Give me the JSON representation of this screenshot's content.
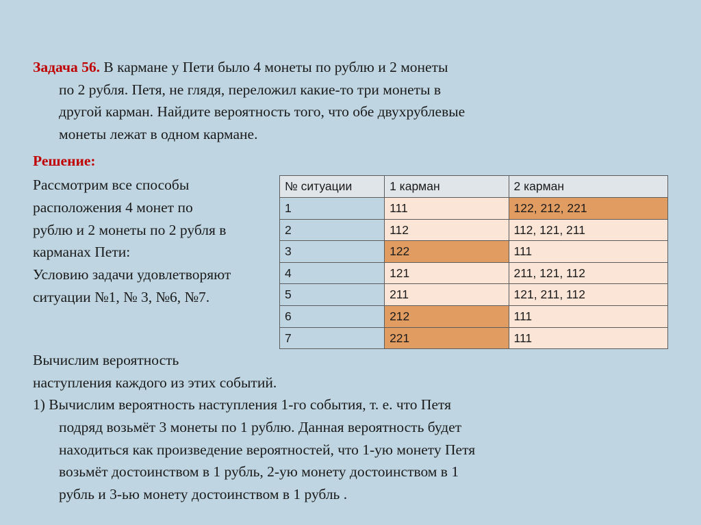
{
  "problem": {
    "title": "Задача 56.",
    "line1": "   В кармане у Пети было 4 монеты по рублю и 2 монеты",
    "line2": "по 2 рубля. Петя, не глядя, переложил какие-то три монеты в",
    "line3": "другой карман. Найдите вероятность того, что обе двухрублевые",
    "line4": "монеты лежат в одном кармане."
  },
  "solution": {
    "label": "Решение:",
    "left_lines": [
      "Рассмотрим все способы",
      "расположения 4 монет по",
      "рублю и 2 монеты по 2 рубля в",
      "карманах Пети:",
      "Условию задачи удовлетворяют",
      " ситуации №1, № 3, №6, №7."
    ],
    "after": [
      "Вычислим вероятность",
      "наступления каждого из этих событий."
    ],
    "item1_first": "1) Вычислим вероятность наступления  1-го события, т. е. что Петя",
    "item1_rest": [
      "подряд возьмёт 3 монеты по 1 рублю. Данная вероятность будет",
      "находиться как произведение вероятностей, что 1-ую монету Петя",
      "возьмёт достоинством в 1 рубль, 2-ую монету достоинством в 1",
      "рубль и 3-ью монету достоинством в 1 рубль ."
    ]
  },
  "table": {
    "headers": [
      "№ ситуации",
      "1 карман",
      "2 карман"
    ],
    "header_bg": "#e0e5e9",
    "hl_dark": "#e19c62",
    "hl_light": "#fbe5d6",
    "border_color": "#5b5b5b",
    "col_widths": [
      "27%",
      "32%",
      "41%"
    ],
    "rows": [
      {
        "n": "1",
        "c1": "111",
        "c2": "122, 212, 221",
        "c1_cls": "hl-light",
        "c2_cls": "hl-dark"
      },
      {
        "n": "2",
        "c1": "112",
        "c2": "112, 121, 211",
        "c1_cls": "hl-light",
        "c2_cls": "hl-light"
      },
      {
        "n": "3",
        "c1": "122",
        "c2": "111",
        "c1_cls": "hl-dark",
        "c2_cls": "hl-light"
      },
      {
        "n": "4",
        "c1": "121",
        "c2": "211, 121, 112",
        "c1_cls": "hl-light",
        "c2_cls": "hl-light"
      },
      {
        "n": "5",
        "c1": "211",
        "c2": "121, 211, 112",
        "c1_cls": "hl-light",
        "c2_cls": "hl-light"
      },
      {
        "n": "6",
        "c1": "212",
        "c2": "111",
        "c1_cls": "hl-dark",
        "c2_cls": "hl-light"
      },
      {
        "n": "7",
        "c1": "221",
        "c2": "111",
        "c1_cls": "hl-dark",
        "c2_cls": "hl-light"
      }
    ]
  },
  "colors": {
    "background": "#bfd6e2",
    "accent": "#c00000",
    "text": "#1a1a1a"
  }
}
